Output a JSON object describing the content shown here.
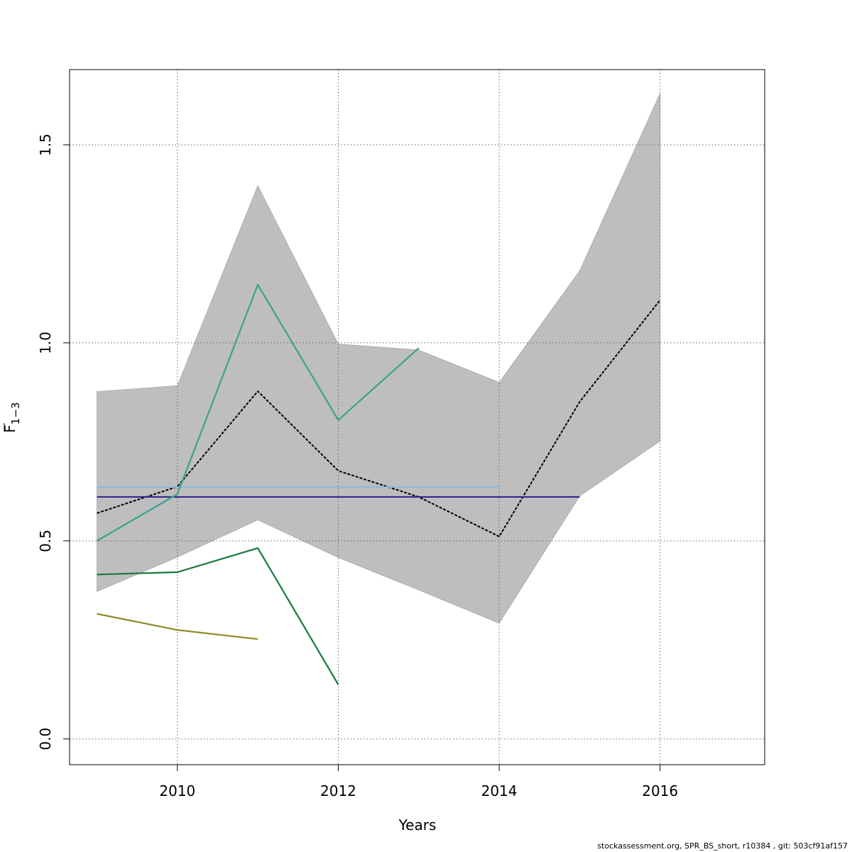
{
  "chart_data": {
    "type": "line",
    "xlabel": "Years",
    "ylabel": "F",
    "ylabel_bar": true,
    "ylabel_subscript": "1−3",
    "xlim": [
      2008.66,
      2017.3
    ],
    "ylim": [
      -0.065,
      1.69
    ],
    "x_ticks": [
      2010,
      2012,
      2014,
      2016
    ],
    "x_tick_labels": [
      "2010",
      "2012",
      "2014",
      "2016"
    ],
    "y_ticks": [
      0.0,
      0.5,
      1.0,
      1.5
    ],
    "y_tick_labels": [
      "0.0",
      "0.5",
      "1.0",
      "1.5"
    ],
    "grid": true,
    "confidence_band": {
      "color": "#bebebe",
      "x": [
        2009,
        2010,
        2011,
        2012,
        2013,
        2014,
        2015,
        2016
      ],
      "upper": [
        0.877,
        0.892,
        1.397,
        0.997,
        0.982,
        0.9,
        1.182,
        1.63
      ],
      "lower": [
        0.372,
        0.459,
        0.553,
        0.458,
        0.376,
        0.292,
        0.613,
        0.752
      ]
    },
    "series": [
      {
        "color": "#000000",
        "dash": true,
        "width": 2,
        "x": [
          2009,
          2010,
          2011,
          2012,
          2013,
          2014,
          2015,
          2016
        ],
        "values": [
          0.57,
          0.637,
          0.878,
          0.677,
          0.611,
          0.511,
          0.851,
          1.108
        ]
      },
      {
        "color": "#8db6e0",
        "dash": false,
        "width": 2,
        "x": [
          2009,
          2014
        ],
        "values": [
          0.636,
          0.636
        ]
      },
      {
        "color": "#2e1e8c",
        "dash": false,
        "width": 2,
        "x": [
          2009,
          2015
        ],
        "values": [
          0.611,
          0.611
        ]
      },
      {
        "color": "#3aa28f",
        "dash": false,
        "width": 2.2,
        "x": [
          2009,
          2010,
          2011,
          2012,
          2013
        ],
        "values": [
          0.5,
          0.618,
          1.147,
          0.805,
          0.987
        ]
      },
      {
        "color": "#147a3c",
        "dash": false,
        "width": 2.2,
        "x": [
          2009,
          2010,
          2011,
          2012
        ],
        "values": [
          0.415,
          0.421,
          0.482,
          0.137
        ]
      },
      {
        "color": "#8c8c22",
        "dash": false,
        "width": 2.2,
        "x": [
          2009,
          2010,
          2011
        ],
        "values": [
          0.316,
          0.275,
          0.252
        ]
      }
    ]
  },
  "footer_text": "stockassessment.org, SPR_BS_short, r10384 , git: 503cf91af157"
}
